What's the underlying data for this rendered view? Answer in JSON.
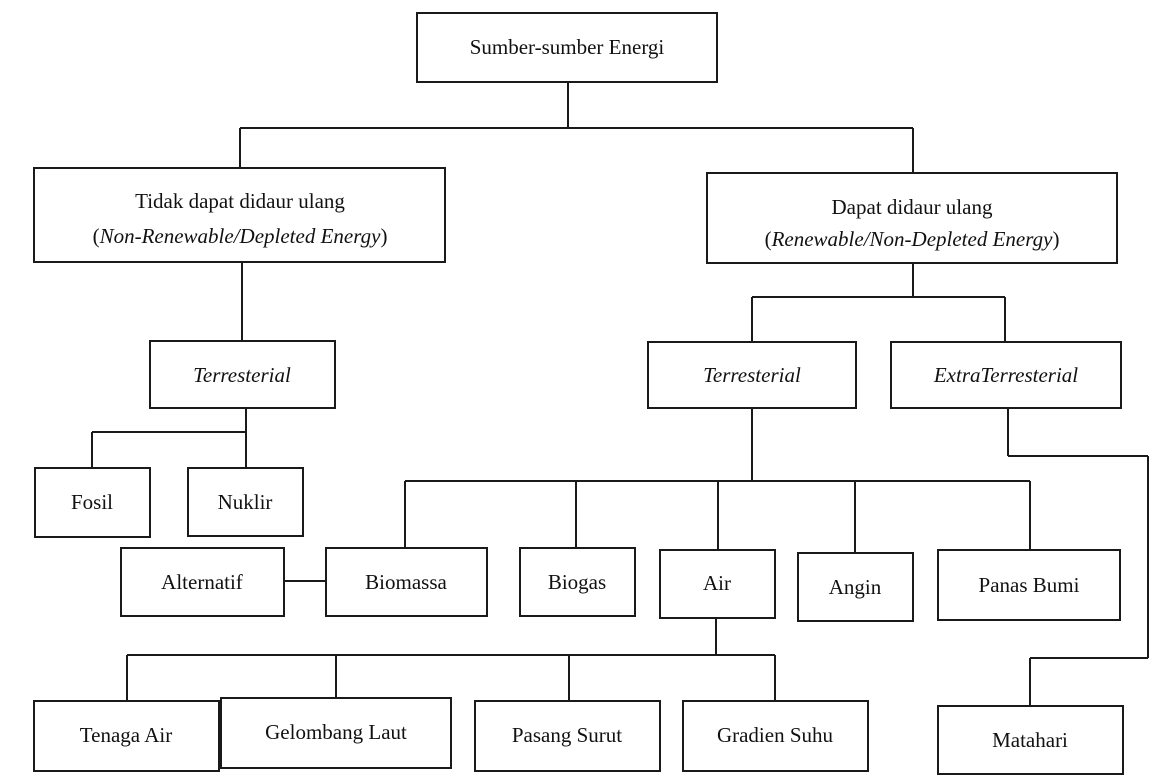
{
  "nodes": {
    "root": "Sumber-sumber Energi",
    "nonrenewable_title": "Tidak dapat didaur ulang",
    "nonrenewable_open": "(",
    "nonrenewable_term": "Non-Renewable/Depleted Energy",
    "nonrenewable_close": ")",
    "renewable_title": "Dapat didaur ulang",
    "renewable_open": "(",
    "renewable_term": "Renewable/Non-Depleted Energy",
    "renewable_close": ")",
    "terrestrial_left": "Terresterial",
    "terrestrial_right": "Terresterial",
    "extraterrestrial": "ExtraTerresterial",
    "fosil": "Fosil",
    "nuklir": "Nuklir",
    "alternatif": "Alternatif",
    "biomassa": "Biomassa",
    "biogas": "Biogas",
    "air": "Air",
    "angin": "Angin",
    "panas_bumi": "Panas Bumi",
    "tenaga_air": "Tenaga Air",
    "gelombang_laut": "Gelombang Laut",
    "pasang_surut": "Pasang Surut",
    "gradien_suhu": "Gradien Suhu",
    "matahari": "Matahari"
  },
  "colors": {
    "stroke": "#1a1a1a",
    "background": "#ffffff",
    "text": "#111111"
  }
}
